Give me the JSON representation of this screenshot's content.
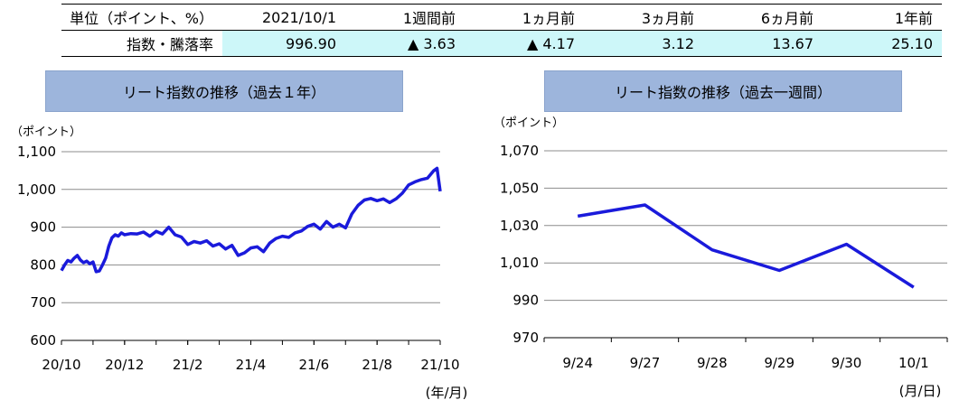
{
  "summary_table": {
    "header": [
      "単位（ポイント、%）",
      "2021/10/1",
      "1週間前",
      "1ヵ月前",
      "3ヵ月前",
      "6ヵ月前",
      "1年前"
    ],
    "row_label": "指数・騰落率",
    "values": [
      "996.90",
      "▲ 3.63",
      "▲ 4.17",
      "3.12",
      "13.67",
      "25.10"
    ]
  },
  "chart_data": [
    {
      "type": "line",
      "title": "リート指数の推移（過去１年）",
      "ylabel": "（ポイント）",
      "xlabel": "(年/月)",
      "ylim": [
        600,
        1100
      ],
      "yticks": [
        600,
        700,
        800,
        900,
        "1,000",
        "1,100"
      ],
      "ytick_values": [
        600,
        700,
        800,
        900,
        1000,
        1100
      ],
      "xtick_labels": [
        "20/10",
        "20/12",
        "21/2",
        "21/4",
        "21/6",
        "21/8",
        "21/10"
      ],
      "grid": true,
      "color": "#1a1adb",
      "series": [
        {
          "x": [
            0,
            0.1,
            0.2,
            0.3,
            0.4,
            0.5,
            0.6,
            0.7,
            0.8,
            0.9,
            1.0,
            1.1,
            1.2,
            1.3,
            1.4,
            1.5,
            1.6,
            1.7,
            1.8,
            1.9,
            2.0,
            2.2,
            2.4,
            2.6,
            2.8,
            3.0,
            3.2,
            3.4,
            3.6,
            3.8,
            4.0,
            4.2,
            4.4,
            4.6,
            4.8,
            5.0,
            5.2,
            5.4,
            5.6,
            5.8,
            6.0,
            6.2,
            6.4,
            6.6,
            6.8,
            7.0,
            7.2,
            7.4,
            7.6,
            7.8,
            8.0,
            8.2,
            8.4,
            8.6,
            8.8,
            9.0,
            9.2,
            9.4,
            9.6,
            9.8,
            10.0,
            10.2,
            10.4,
            10.6,
            10.8,
            11.0,
            11.2,
            11.4,
            11.6,
            11.8,
            11.9,
            12.0
          ],
          "values": [
            785,
            800,
            812,
            808,
            818,
            825,
            813,
            806,
            810,
            803,
            808,
            782,
            784,
            800,
            818,
            850,
            872,
            880,
            876,
            885,
            880,
            883,
            882,
            887,
            876,
            889,
            882,
            900,
            880,
            874,
            854,
            862,
            858,
            864,
            850,
            856,
            842,
            852,
            825,
            832,
            845,
            848,
            835,
            858,
            870,
            876,
            873,
            885,
            890,
            902,
            908,
            895,
            915,
            900,
            908,
            898,
            935,
            958,
            972,
            976,
            970,
            975,
            965,
            975,
            990,
            1012,
            1020,
            1026,
            1030,
            1050,
            1056,
            995
          ]
        }
      ]
    },
    {
      "type": "line",
      "title": "リート指数の推移（過去一週間）",
      "ylabel": "（ポイント）",
      "xlabel": "(月/日)",
      "ylim": [
        970,
        1070
      ],
      "yticks": [
        970,
        990,
        "1,010",
        "1,030",
        "1,050",
        "1,070"
      ],
      "ytick_values": [
        970,
        990,
        1010,
        1030,
        1050,
        1070
      ],
      "categories": [
        "9/24",
        "9/27",
        "9/28",
        "9/29",
        "9/30",
        "10/1"
      ],
      "grid": true,
      "color": "#1a1adb",
      "series": [
        {
          "values": [
            1035,
            1041,
            1017,
            1006,
            1020,
            997
          ]
        }
      ]
    }
  ]
}
